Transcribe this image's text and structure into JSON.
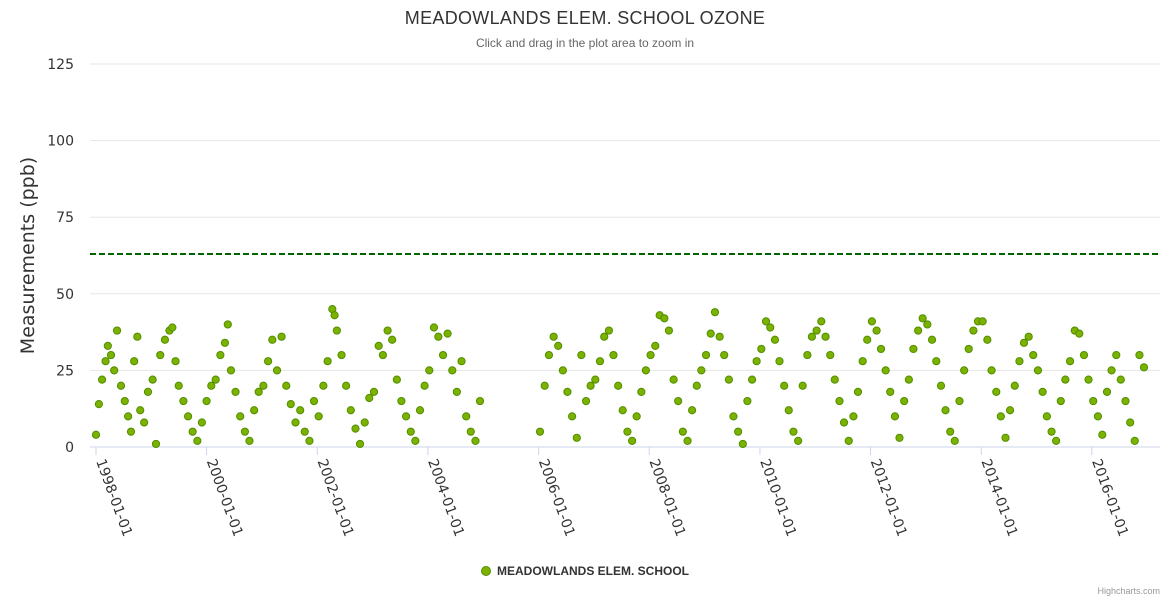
{
  "colors": {
    "series": "#7cb100",
    "series_border": "#4f8f00",
    "threshold": "#006400",
    "grid": "#e6e6e6"
  },
  "credits": "Highcharts.com",
  "chart_data": {
    "type": "scatter",
    "title": "MEADOWLANDS ELEM. SCHOOL OZONE",
    "subtitle": "Click and drag in the plot area to zoom in",
    "ylabel": "Measurements (ppb)",
    "xlabel": "",
    "ylim": [
      0,
      125
    ],
    "yticks": [
      0,
      25,
      50,
      75,
      100,
      125
    ],
    "xlim": [
      "1998-01-01",
      "2017-02-01"
    ],
    "xticks": [
      "1998-01-01",
      "2000-01-01",
      "2002-01-01",
      "2004-01-01",
      "2006-01-01",
      "2008-01-01",
      "2010-01-01",
      "2012-01-01",
      "2014-01-01",
      "2016-01-01"
    ],
    "grid": true,
    "legend_position": "bottom-center",
    "threshold_line": {
      "value": 63,
      "style": "dashed"
    },
    "series": [
      {
        "name": "MEADOWLANDS ELEM. SCHOOL",
        "points": [
          [
            "1998-01-01",
            4
          ],
          [
            "1998-01-20",
            14
          ],
          [
            "1998-02-10",
            22
          ],
          [
            "1998-03-05",
            28
          ],
          [
            "1998-03-20",
            33
          ],
          [
            "1998-04-10",
            30
          ],
          [
            "1998-05-01",
            25
          ],
          [
            "1998-05-20",
            38
          ],
          [
            "1998-06-15",
            20
          ],
          [
            "1998-07-10",
            15
          ],
          [
            "1998-08-01",
            10
          ],
          [
            "1998-08-20",
            5
          ],
          [
            "1998-09-10",
            28
          ],
          [
            "1998-10-01",
            36
          ],
          [
            "1998-10-20",
            12
          ],
          [
            "1998-11-15",
            8
          ],
          [
            "1998-12-10",
            18
          ],
          [
            "1999-01-10",
            22
          ],
          [
            "1999-02-01",
            1
          ],
          [
            "1999-03-01",
            30
          ],
          [
            "1999-04-01",
            35
          ],
          [
            "1999-05-01",
            38
          ],
          [
            "1999-05-20",
            39
          ],
          [
            "1999-06-10",
            28
          ],
          [
            "1999-07-01",
            20
          ],
          [
            "1999-08-01",
            15
          ],
          [
            "1999-09-01",
            10
          ],
          [
            "1999-10-01",
            5
          ],
          [
            "1999-11-01",
            2
          ],
          [
            "1999-12-01",
            8
          ],
          [
            "2000-01-01",
            15
          ],
          [
            "2000-02-01",
            20
          ],
          [
            "2000-03-01",
            22
          ],
          [
            "2000-04-01",
            30
          ],
          [
            "2000-05-01",
            34
          ],
          [
            "2000-05-20",
            40
          ],
          [
            "2000-06-10",
            25
          ],
          [
            "2000-07-10",
            18
          ],
          [
            "2000-08-10",
            10
          ],
          [
            "2000-09-10",
            5
          ],
          [
            "2000-10-10",
            2
          ],
          [
            "2000-11-10",
            12
          ],
          [
            "2000-12-10",
            18
          ],
          [
            "2001-01-10",
            20
          ],
          [
            "2001-02-10",
            28
          ],
          [
            "2001-03-10",
            35
          ],
          [
            "2001-04-10",
            25
          ],
          [
            "2001-05-10",
            36
          ],
          [
            "2001-06-10",
            20
          ],
          [
            "2001-07-10",
            14
          ],
          [
            "2001-08-10",
            8
          ],
          [
            "2001-09-10",
            12
          ],
          [
            "2001-10-10",
            5
          ],
          [
            "2001-11-10",
            2
          ],
          [
            "2001-12-10",
            15
          ],
          [
            "2002-01-10",
            10
          ],
          [
            "2002-02-10",
            20
          ],
          [
            "2002-03-10",
            28
          ],
          [
            "2002-04-10",
            45
          ],
          [
            "2002-04-25",
            43
          ],
          [
            "2002-05-10",
            38
          ],
          [
            "2002-06-10",
            30
          ],
          [
            "2002-07-10",
            20
          ],
          [
            "2002-08-10",
            12
          ],
          [
            "2002-09-10",
            6
          ],
          [
            "2002-10-10",
            1
          ],
          [
            "2002-11-10",
            8
          ],
          [
            "2002-12-10",
            16
          ],
          [
            "2003-01-10",
            18
          ],
          [
            "2003-02-10",
            33
          ],
          [
            "2003-03-10",
            30
          ],
          [
            "2003-04-10",
            38
          ],
          [
            "2003-05-10",
            35
          ],
          [
            "2003-06-10",
            22
          ],
          [
            "2003-07-10",
            15
          ],
          [
            "2003-08-10",
            10
          ],
          [
            "2003-09-10",
            5
          ],
          [
            "2003-10-10",
            2
          ],
          [
            "2003-11-10",
            12
          ],
          [
            "2003-12-10",
            20
          ],
          [
            "2004-01-10",
            25
          ],
          [
            "2004-02-10",
            39
          ],
          [
            "2004-03-10",
            36
          ],
          [
            "2004-04-10",
            30
          ],
          [
            "2004-05-10",
            37
          ],
          [
            "2004-06-10",
            25
          ],
          [
            "2004-07-10",
            18
          ],
          [
            "2004-08-10",
            28
          ],
          [
            "2004-09-10",
            10
          ],
          [
            "2004-10-10",
            5
          ],
          [
            "2004-11-10",
            2
          ],
          [
            "2004-12-10",
            15
          ],
          [
            "2006-01-10",
            5
          ],
          [
            "2006-02-10",
            20
          ],
          [
            "2006-03-10",
            30
          ],
          [
            "2006-04-10",
            36
          ],
          [
            "2006-05-10",
            33
          ],
          [
            "2006-06-10",
            25
          ],
          [
            "2006-07-10",
            18
          ],
          [
            "2006-08-10",
            10
          ],
          [
            "2006-09-10",
            3
          ],
          [
            "2006-10-10",
            30
          ],
          [
            "2006-11-10",
            15
          ],
          [
            "2006-12-10",
            20
          ],
          [
            "2007-01-10",
            22
          ],
          [
            "2007-02-10",
            28
          ],
          [
            "2007-03-10",
            36
          ],
          [
            "2007-04-10",
            38
          ],
          [
            "2007-05-10",
            30
          ],
          [
            "2007-06-10",
            20
          ],
          [
            "2007-07-10",
            12
          ],
          [
            "2007-08-10",
            5
          ],
          [
            "2007-09-10",
            2
          ],
          [
            "2007-10-10",
            10
          ],
          [
            "2007-11-10",
            18
          ],
          [
            "2007-12-10",
            25
          ],
          [
            "2008-01-10",
            30
          ],
          [
            "2008-02-10",
            33
          ],
          [
            "2008-03-10",
            43
          ],
          [
            "2008-04-10",
            42
          ],
          [
            "2008-05-10",
            38
          ],
          [
            "2008-06-10",
            22
          ],
          [
            "2008-07-10",
            15
          ],
          [
            "2008-08-10",
            5
          ],
          [
            "2008-09-10",
            2
          ],
          [
            "2008-10-10",
            12
          ],
          [
            "2008-11-10",
            20
          ],
          [
            "2008-12-10",
            25
          ],
          [
            "2009-01-10",
            30
          ],
          [
            "2009-02-10",
            37
          ],
          [
            "2009-03-10",
            44
          ],
          [
            "2009-04-10",
            36
          ],
          [
            "2009-05-10",
            30
          ],
          [
            "2009-06-10",
            22
          ],
          [
            "2009-07-10",
            10
          ],
          [
            "2009-08-10",
            5
          ],
          [
            "2009-09-10",
            1
          ],
          [
            "2009-10-10",
            15
          ],
          [
            "2009-11-10",
            22
          ],
          [
            "2009-12-10",
            28
          ],
          [
            "2010-01-10",
            32
          ],
          [
            "2010-02-10",
            41
          ],
          [
            "2010-03-10",
            39
          ],
          [
            "2010-04-10",
            35
          ],
          [
            "2010-05-10",
            28
          ],
          [
            "2010-06-10",
            20
          ],
          [
            "2010-07-10",
            12
          ],
          [
            "2010-08-10",
            5
          ],
          [
            "2010-09-10",
            2
          ],
          [
            "2010-10-10",
            20
          ],
          [
            "2010-11-10",
            30
          ],
          [
            "2010-12-10",
            36
          ],
          [
            "2011-01-10",
            38
          ],
          [
            "2011-02-10",
            41
          ],
          [
            "2011-03-10",
            36
          ],
          [
            "2011-04-10",
            30
          ],
          [
            "2011-05-10",
            22
          ],
          [
            "2011-06-10",
            15
          ],
          [
            "2011-07-10",
            8
          ],
          [
            "2011-08-10",
            2
          ],
          [
            "2011-09-10",
            10
          ],
          [
            "2011-10-10",
            18
          ],
          [
            "2011-11-10",
            28
          ],
          [
            "2011-12-10",
            35
          ],
          [
            "2012-01-10",
            41
          ],
          [
            "2012-02-10",
            38
          ],
          [
            "2012-03-10",
            32
          ],
          [
            "2012-04-10",
            25
          ],
          [
            "2012-05-10",
            18
          ],
          [
            "2012-06-10",
            10
          ],
          [
            "2012-07-10",
            3
          ],
          [
            "2012-08-10",
            15
          ],
          [
            "2012-09-10",
            22
          ],
          [
            "2012-10-10",
            32
          ],
          [
            "2012-11-10",
            38
          ],
          [
            "2012-12-10",
            42
          ],
          [
            "2013-01-10",
            40
          ],
          [
            "2013-02-10",
            35
          ],
          [
            "2013-03-10",
            28
          ],
          [
            "2013-04-10",
            20
          ],
          [
            "2013-05-10",
            12
          ],
          [
            "2013-06-10",
            5
          ],
          [
            "2013-07-10",
            2
          ],
          [
            "2013-08-10",
            15
          ],
          [
            "2013-09-10",
            25
          ],
          [
            "2013-10-10",
            32
          ],
          [
            "2013-11-10",
            38
          ],
          [
            "2013-12-10",
            41
          ],
          [
            "2014-01-10",
            41
          ],
          [
            "2014-02-10",
            35
          ],
          [
            "2014-03-10",
            25
          ],
          [
            "2014-04-10",
            18
          ],
          [
            "2014-05-10",
            10
          ],
          [
            "2014-06-10",
            3
          ],
          [
            "2014-07-10",
            12
          ],
          [
            "2014-08-10",
            20
          ],
          [
            "2014-09-10",
            28
          ],
          [
            "2014-10-10",
            34
          ],
          [
            "2014-11-10",
            36
          ],
          [
            "2014-12-10",
            30
          ],
          [
            "2015-01-10",
            25
          ],
          [
            "2015-02-10",
            18
          ],
          [
            "2015-03-10",
            10
          ],
          [
            "2015-04-10",
            5
          ],
          [
            "2015-05-10",
            2
          ],
          [
            "2015-06-10",
            15
          ],
          [
            "2015-07-10",
            22
          ],
          [
            "2015-08-10",
            28
          ],
          [
            "2015-09-10",
            38
          ],
          [
            "2015-10-10",
            37
          ],
          [
            "2015-11-10",
            30
          ],
          [
            "2015-12-10",
            22
          ],
          [
            "2016-01-10",
            15
          ],
          [
            "2016-02-10",
            10
          ],
          [
            "2016-03-10",
            4
          ],
          [
            "2016-04-10",
            18
          ],
          [
            "2016-05-10",
            25
          ],
          [
            "2016-06-10",
            30
          ],
          [
            "2016-07-10",
            22
          ],
          [
            "2016-08-10",
            15
          ],
          [
            "2016-09-10",
            8
          ],
          [
            "2016-10-10",
            2
          ],
          [
            "2016-11-10",
            30
          ],
          [
            "2016-12-10",
            26
          ]
        ]
      }
    ]
  }
}
